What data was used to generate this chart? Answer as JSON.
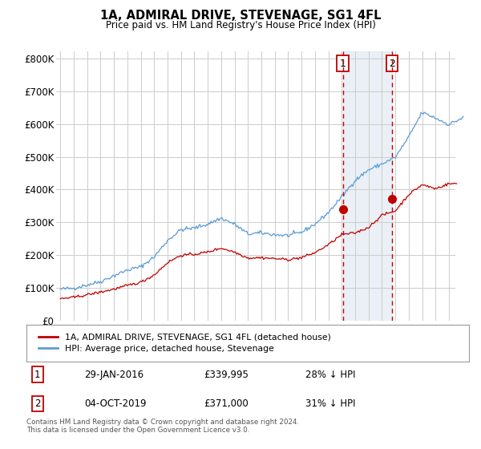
{
  "title": "1A, ADMIRAL DRIVE, STEVENAGE, SG1 4FL",
  "subtitle": "Price paid vs. HM Land Registry's House Price Index (HPI)",
  "ylabel_ticks": [
    "£0",
    "£100K",
    "£200K",
    "£300K",
    "£400K",
    "£500K",
    "£600K",
    "£700K",
    "£800K"
  ],
  "ytick_values": [
    0,
    100000,
    200000,
    300000,
    400000,
    500000,
    600000,
    700000,
    800000
  ],
  "ylim": [
    0,
    820000
  ],
  "hpi_color": "#5b9bd5",
  "price_color": "#c00000",
  "marker1_date_x": 2016.08,
  "marker1_price": 339995,
  "marker2_date_x": 2019.75,
  "marker2_price": 371000,
  "vline1_x": 2016.08,
  "vline2_x": 2019.75,
  "legend_label_red": "1A, ADMIRAL DRIVE, STEVENAGE, SG1 4FL (detached house)",
  "legend_label_blue": "HPI: Average price, detached house, Stevenage",
  "table_row1": [
    "1",
    "29-JAN-2016",
    "£339,995",
    "28% ↓ HPI"
  ],
  "table_row2": [
    "2",
    "04-OCT-2019",
    "£371,000",
    "31% ↓ HPI"
  ],
  "footnote": "Contains HM Land Registry data © Crown copyright and database right 2024.\nThis data is licensed under the Open Government Licence v3.0.",
  "bg_color": "#ffffff",
  "grid_color": "#cccccc",
  "shade_color": "#dce6f1",
  "xlim_left": 1994.7,
  "xlim_right": 2025.5
}
